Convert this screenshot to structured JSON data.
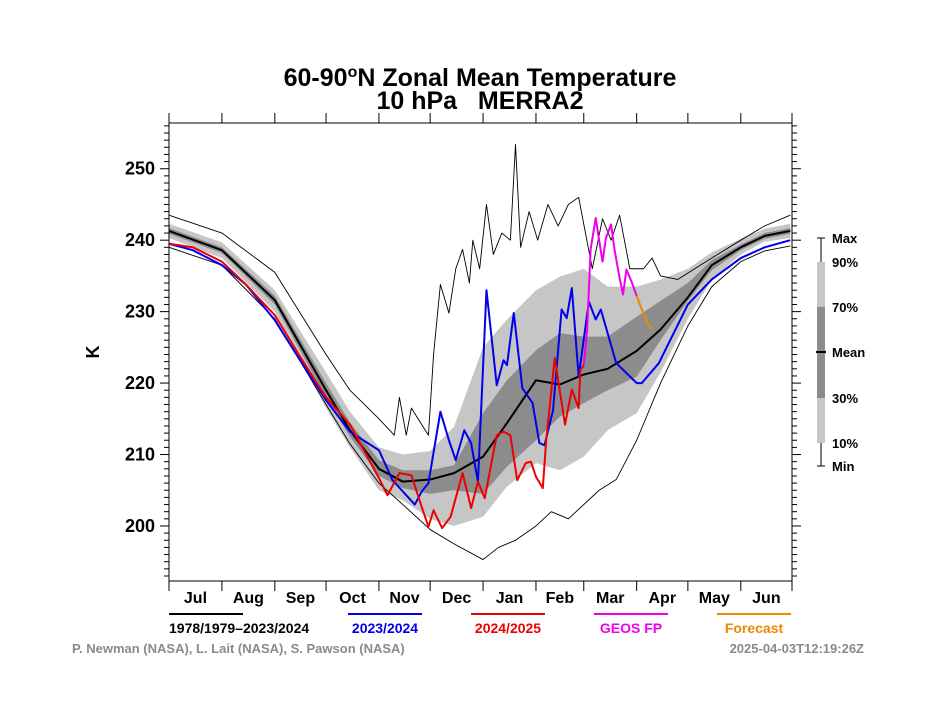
{
  "chart_data": {
    "type": "line",
    "title": "60-90°N Zonal Mean Temperature",
    "title_parts": {
      "lat": "60-90",
      "deg": "o",
      "rest": "N Zonal Mean Temperature"
    },
    "subtitle": "10 hPa   MERRA2",
    "ylabel": "K",
    "ylim": [
      192.3,
      256.4
    ],
    "yticks": [
      200,
      210,
      220,
      230,
      240,
      250
    ],
    "ytick_labels": [
      "200",
      "210",
      "220",
      "230",
      "240",
      "250"
    ],
    "xlim": [
      "07-01",
      "06-30"
    ],
    "months": [
      "Jul",
      "Aug",
      "Sep",
      "Oct",
      "Nov",
      "Dec",
      "Jan",
      "Feb",
      "Mar",
      "Apr",
      "May",
      "Jun"
    ],
    "grid": false,
    "colors": {
      "light_band": "#c6c6c6",
      "dark_band": "#8c8c8c",
      "climatology": "#000000",
      "2023/2024": "#0000ee",
      "2024/2025": "#ee0000",
      "GEOS FP": "#ee00ee",
      "Forecast": "#ee8800"
    },
    "climatology": {
      "dates": [
        "07-01",
        "08-01",
        "09-01",
        "10-01",
        "10-15",
        "11-01",
        "11-15",
        "12-01",
        "12-15",
        "01-01",
        "01-15",
        "02-01",
        "02-15",
        "03-01",
        "03-15",
        "04-01",
        "04-15",
        "05-01",
        "05-15",
        "06-01",
        "06-15",
        "06-30"
      ],
      "p10": [
        240.3,
        237.5,
        230,
        216.5,
        211,
        205,
        203.6,
        201,
        200,
        201.3,
        205.5,
        208.8,
        207.8,
        209.7,
        213.4,
        215.8,
        221.5,
        229,
        234.5,
        238,
        239.8,
        240.3
      ],
      "p30": [
        240.9,
        238.2,
        231,
        218,
        212.5,
        207,
        205.3,
        204.5,
        205,
        204.5,
        208.3,
        212,
        215.3,
        217.2,
        219,
        220.9,
        226,
        231.5,
        235.8,
        238.6,
        240.2,
        240.9
      ],
      "mean": [
        241.3,
        238.6,
        231.6,
        219,
        213.4,
        208,
        206.2,
        206.5,
        207.4,
        209.7,
        214.4,
        220.4,
        219.8,
        221.2,
        222,
        224.5,
        227.5,
        232,
        236.5,
        239,
        240.6,
        241.3
      ],
      "p70": [
        241.7,
        239,
        232.2,
        220,
        214.5,
        209.2,
        207.8,
        207.8,
        208.5,
        215.8,
        220.4,
        224.6,
        227,
        226.5,
        226.5,
        229.3,
        231.5,
        234,
        237.2,
        239.4,
        241,
        241.7
      ],
      "p90": [
        242.3,
        239.7,
        233,
        221.5,
        216,
        211,
        210,
        210.5,
        213.9,
        225,
        228.9,
        233,
        234.9,
        236,
        233.5,
        233.5,
        234.5,
        236,
        238.3,
        240.2,
        241.6,
        242.3
      ]
    },
    "max": {
      "dates": [
        "07-01",
        "08-01",
        "09-01",
        "10-01",
        "10-15",
        "11-01",
        "11-10",
        "11-13",
        "11-17",
        "11-20",
        "11-30",
        "12-03",
        "12-07",
        "12-12",
        "12-16",
        "12-20",
        "12-24",
        "12-26",
        "12-30",
        "01-03",
        "01-07",
        "01-12",
        "01-17",
        "01-20",
        "01-23",
        "01-28",
        "02-02",
        "02-08",
        "02-14",
        "02-20",
        "02-26",
        "03-02",
        "03-06",
        "03-12",
        "03-17",
        "03-22",
        "03-28",
        "04-05",
        "04-10",
        "04-15",
        "04-25",
        "05-05",
        "05-15",
        "06-01",
        "06-15",
        "06-30"
      ],
      "values": [
        243.5,
        241,
        235.5,
        224,
        219,
        215,
        212.7,
        218,
        212.7,
        216.5,
        212.7,
        224,
        233.8,
        229.8,
        236,
        238.7,
        234,
        240,
        236,
        245,
        238,
        241,
        240,
        253.4,
        239,
        244,
        240,
        245,
        242,
        245,
        246,
        241,
        236,
        243,
        240,
        243.5,
        236,
        236,
        237.5,
        235,
        234.5,
        236,
        237.5,
        240,
        242,
        243.5
      ]
    },
    "min": {
      "dates": [
        "07-01",
        "08-01",
        "09-01",
        "10-01",
        "10-15",
        "11-01",
        "11-15",
        "12-01",
        "12-15",
        "01-01",
        "01-10",
        "01-20",
        "02-01",
        "02-10",
        "02-20",
        "03-01",
        "03-10",
        "03-20",
        "04-01",
        "04-15",
        "05-01",
        "05-15",
        "06-01",
        "06-15",
        "06-30"
      ],
      "values": [
        239,
        236.5,
        229,
        217,
        211.5,
        206,
        203,
        199.5,
        197.5,
        195.3,
        197,
        198,
        200,
        202,
        201,
        203,
        205,
        206.5,
        212,
        220,
        228,
        233.5,
        237,
        238.5,
        239.2
      ]
    },
    "series": [
      {
        "name": "2023/2024",
        "color": "#0000ee",
        "dates": [
          "07-01",
          "07-15",
          "08-01",
          "08-15",
          "09-01",
          "09-15",
          "10-01",
          "10-15",
          "11-01",
          "11-09",
          "11-22",
          "11-26",
          "11-30",
          "12-07",
          "12-12",
          "12-16",
          "12-21",
          "12-25",
          "12-29",
          "01-03",
          "01-09",
          "01-13",
          "01-15",
          "01-19",
          "01-24",
          "01-30",
          "02-03",
          "02-06",
          "02-11",
          "02-16",
          "02-19",
          "02-22",
          "02-26",
          "03-04",
          "03-08",
          "03-11",
          "03-20",
          "04-01",
          "04-04",
          "04-14",
          "05-01",
          "05-15",
          "06-01",
          "06-15",
          "06-30"
        ],
        "values": [
          239.5,
          238.6,
          236.5,
          233.8,
          228.8,
          223.5,
          217.6,
          213.2,
          210.6,
          206.4,
          203,
          204.8,
          206,
          216,
          212,
          209.2,
          213.4,
          211.6,
          206.2,
          233,
          219.7,
          223.2,
          222.5,
          229.8,
          219.3,
          217.2,
          211.6,
          211.3,
          216.2,
          230.3,
          229.1,
          233.3,
          220.9,
          231.4,
          228.9,
          230.3,
          222.8,
          220,
          220,
          222.8,
          231,
          234.5,
          237.5,
          239,
          240
        ]
      },
      {
        "name": "2024/2025",
        "color": "#ee0000",
        "dates": [
          "07-01",
          "07-15",
          "08-01",
          "08-15",
          "09-01",
          "09-15",
          "10-01",
          "10-15",
          "11-01",
          "11-06",
          "11-13",
          "11-20",
          "11-26",
          "11-30",
          "12-03",
          "12-08",
          "12-13",
          "12-20",
          "12-25",
          "12-29",
          "01-02",
          "01-09",
          "01-13",
          "01-17",
          "01-21",
          "01-26",
          "01-29",
          "02-01",
          "02-05",
          "02-07",
          "02-12",
          "02-18",
          "02-22",
          "02-26",
          "02-27",
          "03-01"
        ],
        "values": [
          239.5,
          239,
          237,
          233.8,
          229.5,
          224,
          218,
          214.2,
          206.7,
          204.3,
          207.4,
          207.1,
          202.7,
          199.9,
          202.2,
          199.7,
          201.3,
          207.4,
          202.5,
          206.2,
          203.9,
          212.7,
          213.2,
          212.7,
          206.4,
          208.8,
          209,
          206.9,
          205.3,
          212,
          223.5,
          214.2,
          219.1,
          216.5,
          221.8,
          222.5
        ]
      },
      {
        "name": "GEOS FP",
        "color": "#ee00ee",
        "dates": [
          "03-01",
          "03-03",
          "03-05",
          "03-08",
          "03-10",
          "03-12",
          "03-14",
          "03-17",
          "03-19",
          "03-22",
          "03-24",
          "03-26",
          "03-29",
          "04-01"
        ],
        "values": [
          222.5,
          227.5,
          238.7,
          243.1,
          240,
          237,
          240.3,
          242.2,
          238.7,
          234.7,
          232.4,
          235.9,
          234.2,
          232.2
        ]
      },
      {
        "name": "Forecast",
        "color": "#ee8800",
        "dates": [
          "04-01",
          "04-04",
          "04-07",
          "04-10"
        ],
        "values": [
          232.2,
          230.3,
          228.6,
          227.5
        ]
      }
    ],
    "legend": {
      "placement": "bottom",
      "entries": [
        {
          "label": "1978/1979–2023/2024",
          "color": "#000000"
        },
        {
          "label": "2023/2024",
          "color": "#0000ee"
        },
        {
          "label": "2024/2025",
          "color": "#ee0000"
        },
        {
          "label": "GEOS FP",
          "color": "#ee00ee"
        },
        {
          "label": "Forecast",
          "color": "#ee8800"
        }
      ]
    },
    "band_legend": {
      "placement": "right",
      "labels": [
        "Max",
        "90%",
        "70%",
        "Mean",
        "30%",
        "10%",
        "Min"
      ]
    }
  },
  "credits": {
    "authors": "P. Newman (NASA), L. Lait (NASA), S. Pawson (NASA)",
    "timestamp": "2025-04-03T12:19:26Z"
  }
}
